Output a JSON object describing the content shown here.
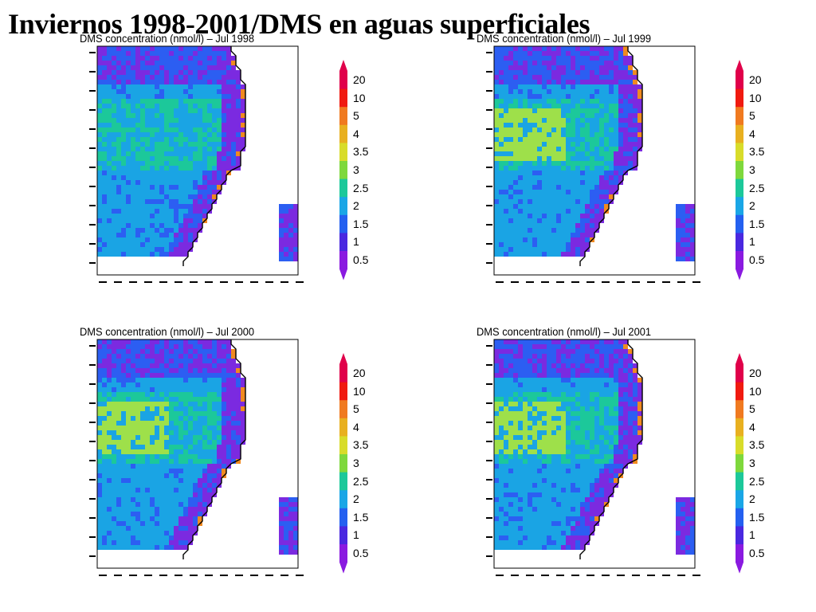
{
  "title": "Inviernos 1998-2001/DMS en aguas superficiales",
  "colorbar": {
    "labels": [
      "20",
      "10",
      "5",
      "4",
      "3.5",
      "3",
      "2.5",
      "2",
      "1.5",
      "1",
      "0.5"
    ],
    "colors": [
      "#e0004a",
      "#f01a10",
      "#f07a20",
      "#e8b020",
      "#d8dc2a",
      "#7ed83c",
      "#1cc89a",
      "#1aa6e6",
      "#2460f0",
      "#4a28e0",
      "#8a1ae0"
    ]
  },
  "palette": {
    "land": "#ffffff",
    "coast": "#000000",
    "low": "#7b2ae0",
    "mid": "#2c5ef2",
    "high": "#1aa4e4",
    "green": "#1cc89a",
    "yellow": "#9ee04a",
    "orange": "#f08a20"
  },
  "panels": [
    {
      "title": "DMS concentration (nmol/l) – Jul 1998"
    },
    {
      "title": "DMS concentration (nmol/l) – Jul 1999"
    },
    {
      "title": "DMS concentration (nmol/l) – Jul 2000"
    },
    {
      "title": "DMS concentration (nmol/l) – Jul 2001"
    }
  ]
}
